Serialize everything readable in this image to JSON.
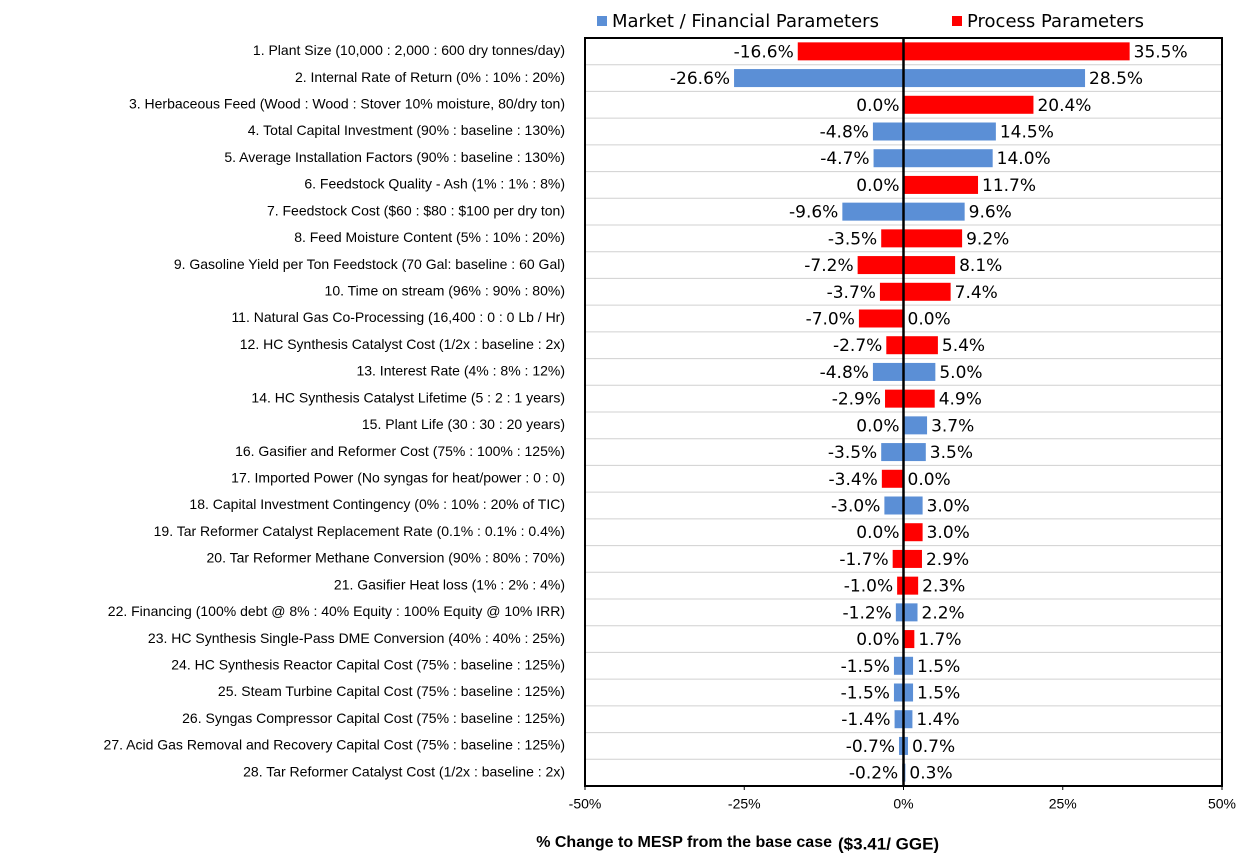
{
  "chart_data": {
    "type": "tornado",
    "categories": [
      "1. Plant Size (10,000 : 2,000 : 600 dry tonnes/day)",
      "2. Internal Rate of Return (0% : 10% : 20%)",
      "3. Herbaceous Feed (Wood : Wood : Stover 10% moisture, 80/dry ton)",
      "4. Total Capital Investment (90% : baseline : 130%)",
      "5. Average Installation Factors (90% : baseline : 130%)",
      "6. Feedstock Quality - Ash (1% : 1% : 8%)",
      "7. Feedstock Cost ($60 : $80 : $100 per dry ton)",
      "8. Feed Moisture Content (5% : 10% : 20%)",
      "9. Gasoline Yield per Ton Feedstock (70 Gal: baseline : 60 Gal)",
      "10. Time on stream (96% : 90% : 80%)",
      "11. Natural Gas Co-Processing (16,400 : 0 : 0 Lb / Hr)",
      "12. HC Synthesis Catalyst Cost (1/2x : baseline : 2x)",
      "13. Interest Rate (4% : 8% : 12%)",
      "14. HC Synthesis Catalyst Lifetime (5 : 2 : 1 years)",
      "15. Plant Life (30 : 30 : 20 years)",
      "16. Gasifier and Reformer Cost (75% : 100% : 125%)",
      "17. Imported Power (No syngas for heat/power : 0 : 0)",
      "18. Capital Investment Contingency (0% : 10% : 20% of TIC)",
      "19. Tar Reformer Catalyst Replacement Rate (0.1% : 0.1% : 0.4%)",
      "20. Tar Reformer Methane Conversion (90% : 80% : 70%)",
      "21. Gasifier Heat loss (1% : 2% : 4%)",
      "22. Financing (100% debt @ 8% : 40% Equity : 100% Equity @ 10% IRR)",
      "23. HC Synthesis Single-Pass DME Conversion (40% : 40% : 25%)",
      "24. HC Synthesis Reactor Capital Cost (75% : baseline : 125%)",
      "25. Steam Turbine Capital Cost (75% : baseline : 125%)",
      "26. Syngas Compressor Capital Cost (75% : baseline : 125%)",
      "27. Acid Gas Removal and Recovery Capital Cost (75% : baseline : 125%)",
      "28. Tar Reformer Catalyst Cost (1/2x : baseline : 2x)"
    ],
    "series": [
      {
        "name": "Market / Financial Parameters",
        "color": "#5b8fd6"
      },
      {
        "name": "Process Parameters",
        "color": "#ff0000"
      }
    ],
    "bar_colors": [
      "#ff0000",
      "#5b8fd6",
      "#ff0000",
      "#5b8fd6",
      "#5b8fd6",
      "#ff0000",
      "#5b8fd6",
      "#ff0000",
      "#ff0000",
      "#ff0000",
      "#ff0000",
      "#ff0000",
      "#5b8fd6",
      "#ff0000",
      "#5b8fd6",
      "#5b8fd6",
      "#ff0000",
      "#5b8fd6",
      "#ff0000",
      "#ff0000",
      "#ff0000",
      "#5b8fd6",
      "#ff0000",
      "#5b8fd6",
      "#5b8fd6",
      "#5b8fd6",
      "#5b8fd6",
      "#5b8fd6"
    ],
    "low_values": [
      -16.6,
      -26.6,
      0.0,
      -4.8,
      -4.7,
      0.0,
      -9.6,
      -3.5,
      -7.2,
      -3.7,
      -7.0,
      -2.7,
      -4.8,
      -2.9,
      0.0,
      -3.5,
      -3.4,
      -3.0,
      0.0,
      -1.7,
      -1.0,
      -1.2,
      0.0,
      -1.5,
      -1.5,
      -1.4,
      -0.7,
      -0.2
    ],
    "low_value_labels": [
      "-16.6%",
      "-26.6%",
      "0.0%",
      "-4.8%",
      "-4.7%",
      "0.0%",
      "-9.6%",
      "-3.5%",
      "-7.2%",
      "-3.7%",
      "-7.0%",
      "-2.7%",
      "-4.8%",
      "-2.9%",
      "0.0%",
      "-3.5%",
      "-3.4%",
      "-3.0%",
      "0.0%",
      "-1.7%",
      "-1.0%",
      "-1.2%",
      "0.0%",
      "-1.5%",
      "-1.5%",
      "-1.4%",
      "-0.7%",
      "-0.2%"
    ],
    "high_values": [
      35.5,
      28.5,
      20.4,
      14.5,
      14.0,
      11.7,
      9.6,
      9.2,
      8.1,
      7.4,
      0.0,
      5.4,
      5.0,
      4.9,
      3.7,
      3.5,
      0.0,
      3.0,
      3.0,
      2.9,
      2.3,
      2.2,
      1.7,
      1.5,
      1.5,
      1.4,
      0.7,
      0.3
    ],
    "high_value_labels": [
      "35.5%",
      "28.5%",
      "20.4%",
      "14.5%",
      "14.0%",
      "11.7%",
      "9.6%",
      "9.2%",
      "8.1%",
      "7.4%",
      "0.0%",
      "5.4%",
      "5.0%",
      "4.9%",
      "3.7%",
      "3.5%",
      "0.0%",
      "3.0%",
      "3.0%",
      "2.9%",
      "2.3%",
      "2.2%",
      "1.7%",
      "1.5%",
      "1.5%",
      "1.4%",
      "0.7%",
      "0.3%"
    ],
    "xlim": [
      -50,
      50
    ],
    "xticks": [
      {
        "value": -50,
        "label": "-50%"
      },
      {
        "value": -25,
        "label": "-25%"
      },
      {
        "value": 0,
        "label": "0%"
      },
      {
        "value": 25,
        "label": "25%"
      },
      {
        "value": 50,
        "label": "50%"
      }
    ],
    "x_label": "% Change to MESP from the base case",
    "x_label_suffix": "($3.41/ GGE)",
    "legend": "top"
  }
}
